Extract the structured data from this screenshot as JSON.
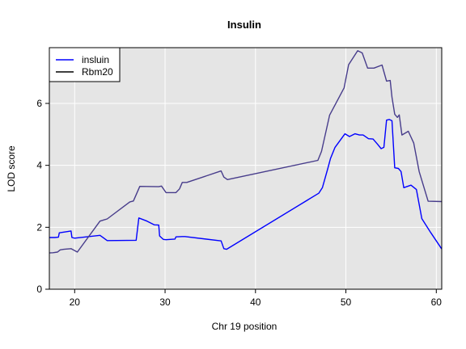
{
  "chart_data": {
    "type": "line",
    "title": "Insulin",
    "xlabel": "Chr 19 position",
    "ylabel": "LOD score",
    "xlim": [
      17.2,
      60.6
    ],
    "ylim": [
      0,
      7.8
    ],
    "x_ticks": [
      20,
      30,
      40,
      50,
      60
    ],
    "y_ticks": [
      0,
      2,
      4,
      6
    ],
    "grid": true,
    "legend_position": "top-left",
    "background": "#e5e5e5",
    "grid_color": "#ffffff",
    "series": [
      {
        "name": "insluin",
        "color": "#0000ff",
        "points": [
          [
            17.2,
            1.67
          ],
          [
            17.8,
            1.67
          ],
          [
            18.2,
            1.68
          ],
          [
            18.3,
            1.82
          ],
          [
            19.6,
            1.88
          ],
          [
            19.7,
            1.67
          ],
          [
            20.0,
            1.65
          ],
          [
            22.8,
            1.74
          ],
          [
            23.6,
            1.57
          ],
          [
            26.8,
            1.58
          ],
          [
            27.1,
            2.3
          ],
          [
            28.0,
            2.2
          ],
          [
            28.8,
            2.08
          ],
          [
            29.3,
            2.07
          ],
          [
            29.4,
            1.72
          ],
          [
            29.8,
            1.61
          ],
          [
            30.1,
            1.6
          ],
          [
            31.1,
            1.62
          ],
          [
            31.2,
            1.69
          ],
          [
            31.9,
            1.7
          ],
          [
            32.2,
            1.7
          ],
          [
            36.2,
            1.56
          ],
          [
            36.5,
            1.31
          ],
          [
            36.8,
            1.29
          ],
          [
            47.0,
            3.1
          ],
          [
            47.4,
            3.28
          ],
          [
            48.0,
            3.9
          ],
          [
            48.3,
            4.22
          ],
          [
            48.8,
            4.58
          ],
          [
            49.9,
            5.02
          ],
          [
            50.4,
            4.93
          ],
          [
            51.0,
            5.02
          ],
          [
            51.5,
            4.98
          ],
          [
            51.9,
            4.98
          ],
          [
            52.5,
            4.86
          ],
          [
            53.0,
            4.85
          ],
          [
            53.5,
            4.68
          ],
          [
            53.9,
            4.54
          ],
          [
            54.2,
            4.58
          ],
          [
            54.5,
            5.46
          ],
          [
            54.8,
            5.48
          ],
          [
            55.1,
            5.44
          ],
          [
            55.4,
            3.92
          ],
          [
            55.8,
            3.9
          ],
          [
            56.1,
            3.8
          ],
          [
            56.4,
            3.28
          ],
          [
            57.2,
            3.36
          ],
          [
            57.8,
            3.22
          ],
          [
            58.4,
            2.28
          ],
          [
            59.4,
            1.82
          ],
          [
            60.6,
            1.3
          ]
        ]
      },
      {
        "name": "Rbm20",
        "color": "#473c8b",
        "points": [
          [
            17.2,
            1.17
          ],
          [
            17.6,
            1.18
          ],
          [
            18.1,
            1.2
          ],
          [
            18.4,
            1.27
          ],
          [
            18.8,
            1.29
          ],
          [
            19.6,
            1.31
          ],
          [
            20.3,
            1.2
          ],
          [
            22.8,
            2.2
          ],
          [
            23.6,
            2.27
          ],
          [
            26.1,
            2.82
          ],
          [
            26.5,
            2.85
          ],
          [
            27.2,
            3.32
          ],
          [
            29.3,
            3.31
          ],
          [
            29.6,
            3.33
          ],
          [
            30.1,
            3.12
          ],
          [
            31.2,
            3.12
          ],
          [
            31.6,
            3.24
          ],
          [
            31.9,
            3.45
          ],
          [
            32.4,
            3.45
          ],
          [
            36.2,
            3.82
          ],
          [
            36.5,
            3.62
          ],
          [
            36.9,
            3.54
          ],
          [
            46.9,
            4.16
          ],
          [
            47.3,
            4.45
          ],
          [
            48.2,
            5.62
          ],
          [
            49.8,
            6.5
          ],
          [
            50.3,
            7.25
          ],
          [
            51.3,
            7.7
          ],
          [
            51.8,
            7.63
          ],
          [
            52.4,
            7.14
          ],
          [
            53.1,
            7.14
          ],
          [
            54.0,
            7.24
          ],
          [
            54.5,
            6.72
          ],
          [
            54.9,
            6.74
          ],
          [
            55.1,
            6.2
          ],
          [
            55.4,
            5.65
          ],
          [
            55.7,
            5.55
          ],
          [
            55.9,
            5.63
          ],
          [
            56.2,
            4.98
          ],
          [
            56.9,
            5.1
          ],
          [
            57.5,
            4.72
          ],
          [
            58.1,
            3.8
          ],
          [
            59.1,
            2.84
          ],
          [
            60.6,
            2.83
          ]
        ]
      }
    ]
  }
}
